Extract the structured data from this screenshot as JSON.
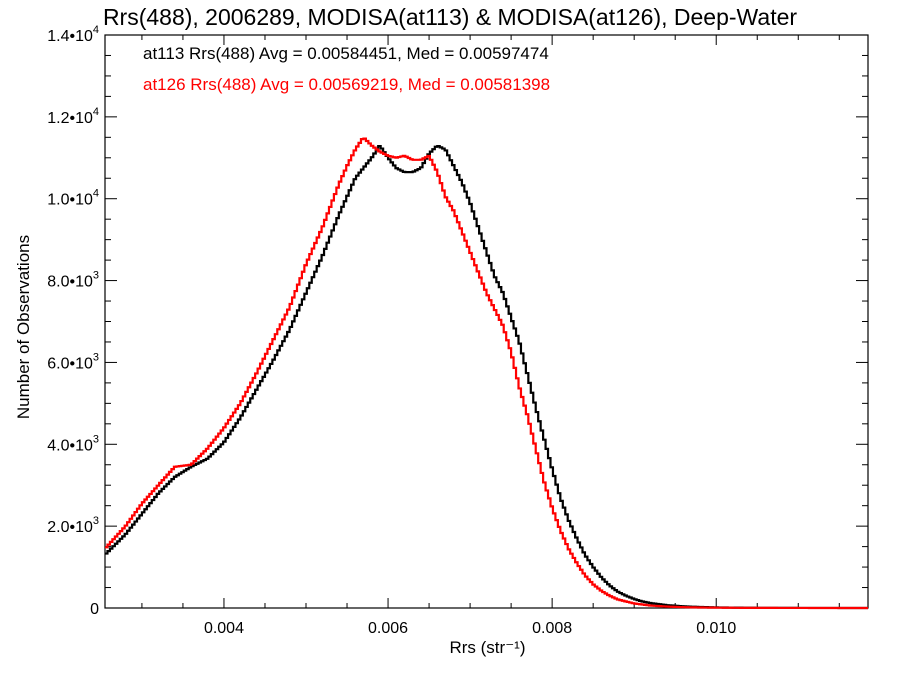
{
  "chart_data": {
    "type": "line",
    "title": "Rrs(488), 2006289, MODISA(at113) & MODISA(at126), Deep-Water",
    "xlabel": "Rrs (str⁻¹)",
    "ylabel": "Number of Observations",
    "xlim": [
      0.00255,
      0.01185
    ],
    "ylim": [
      0,
      14000
    ],
    "x_ticks": [
      0.004,
      0.006,
      0.008,
      0.01
    ],
    "x_tick_labels": [
      "0.004",
      "0.006",
      "0.008",
      "0.010"
    ],
    "y_ticks": [
      0,
      2000,
      4000,
      6000,
      8000,
      10000,
      12000,
      14000
    ],
    "y_tick_labels": [
      {
        "mant": "0",
        "exp": ""
      },
      {
        "mant": "2.0•10",
        "exp": "3"
      },
      {
        "mant": "4.0•10",
        "exp": "3"
      },
      {
        "mant": "6.0•10",
        "exp": "3"
      },
      {
        "mant": "8.0•10",
        "exp": "3"
      },
      {
        "mant": "1.0•10",
        "exp": "4"
      },
      {
        "mant": "1.2•10",
        "exp": "4"
      },
      {
        "mant": "1.4•10",
        "exp": "4"
      }
    ],
    "annotations": [
      {
        "text": "at113 Rrs(488) Avg = 0.00584451, Med = 0.00597474",
        "color": "#000000"
      },
      {
        "text": "at126 Rrs(488) Avg = 0.00569219, Med = 0.00581398",
        "color": "#ff0000"
      }
    ],
    "grid": false,
    "series": [
      {
        "name": "at113",
        "color": "#000000",
        "x": [
          0.00255,
          0.0028,
          0.003,
          0.0032,
          0.0034,
          0.0036,
          0.0038,
          0.004,
          0.0042,
          0.0044,
          0.0046,
          0.0048,
          0.005,
          0.0052,
          0.0054,
          0.0056,
          0.0058,
          0.0059,
          0.006,
          0.0061,
          0.0062,
          0.0063,
          0.0064,
          0.0065,
          0.0066,
          0.0067,
          0.0068,
          0.0069,
          0.007,
          0.0071,
          0.0072,
          0.0073,
          0.0074,
          0.0075,
          0.0076,
          0.0077,
          0.0078,
          0.0079,
          0.008,
          0.0081,
          0.0082,
          0.0083,
          0.0084,
          0.0085,
          0.0086,
          0.0087,
          0.0088,
          0.0089,
          0.009,
          0.0091,
          0.0092,
          0.0094,
          0.0096,
          0.0098,
          0.01,
          0.0102,
          0.0105,
          0.011,
          0.01185
        ],
        "y": [
          1300,
          1800,
          2300,
          2800,
          3200,
          3450,
          3650,
          4050,
          4650,
          5350,
          6050,
          6800,
          7700,
          8600,
          9600,
          10500,
          11000,
          11300,
          11000,
          10750,
          10650,
          10650,
          10750,
          11100,
          11300,
          11200,
          10800,
          10400,
          9900,
          9300,
          8700,
          8100,
          7700,
          7100,
          6500,
          5700,
          4900,
          4150,
          3400,
          2700,
          2150,
          1700,
          1300,
          1000,
          750,
          550,
          400,
          300,
          220,
          160,
          120,
          70,
          40,
          25,
          15,
          10,
          5,
          2,
          0
        ]
      },
      {
        "name": "at126",
        "color": "#ff0000",
        "x": [
          0.00255,
          0.0028,
          0.003,
          0.0032,
          0.0034,
          0.0036,
          0.0038,
          0.004,
          0.0042,
          0.0044,
          0.0046,
          0.0048,
          0.005,
          0.0052,
          0.0054,
          0.0055,
          0.0056,
          0.0057,
          0.0058,
          0.0059,
          0.006,
          0.0061,
          0.0062,
          0.0063,
          0.0064,
          0.0065,
          0.0066,
          0.0067,
          0.0068,
          0.0069,
          0.007,
          0.0071,
          0.0072,
          0.0073,
          0.0074,
          0.0075,
          0.0076,
          0.0077,
          0.0078,
          0.0079,
          0.008,
          0.0081,
          0.0082,
          0.0083,
          0.0084,
          0.0085,
          0.0086,
          0.0087,
          0.0088,
          0.009,
          0.0092,
          0.0094,
          0.0096,
          0.0098,
          0.01,
          0.0103,
          0.011,
          0.01185
        ],
        "y": [
          1450,
          2000,
          2550,
          3000,
          3450,
          3500,
          3900,
          4400,
          5000,
          5750,
          6550,
          7350,
          8400,
          9300,
          10350,
          10800,
          11200,
          11500,
          11300,
          11150,
          11050,
          11000,
          11050,
          10950,
          10950,
          11050,
          10650,
          10050,
          9700,
          9200,
          8700,
          8200,
          7700,
          7300,
          6900,
          6250,
          5400,
          4700,
          3900,
          3100,
          2450,
          1900,
          1450,
          1100,
          800,
          580,
          420,
          300,
          210,
          110,
          60,
          35,
          20,
          12,
          8,
          4,
          1,
          0
        ]
      }
    ]
  }
}
